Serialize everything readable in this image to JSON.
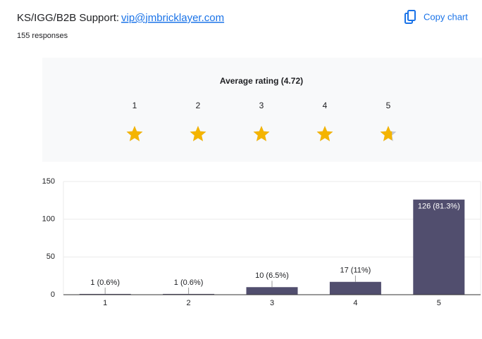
{
  "header": {
    "title": "KS/IGG/B2B Support:",
    "email": "vip@jmbricklayer.com",
    "responses": "155 responses",
    "copy": "Copy chart"
  },
  "rating": {
    "title": "Average rating (4.72)",
    "average": 4.72,
    "labels": [
      "1",
      "2",
      "3",
      "4",
      "5"
    ],
    "color": "#f4b400"
  },
  "chart_data": {
    "type": "bar",
    "categories": [
      "1",
      "2",
      "3",
      "4",
      "5"
    ],
    "values": [
      1,
      1,
      10,
      17,
      126
    ],
    "value_labels": [
      "1 (0.6%)",
      "1 (0.6%)",
      "10 (6.5%)",
      "17 (11%)",
      "126 (81.3%)"
    ],
    "color": "#514e6e",
    "ylim": [
      0,
      150
    ],
    "yticks": [
      0,
      50,
      100,
      150
    ],
    "grid": true
  }
}
